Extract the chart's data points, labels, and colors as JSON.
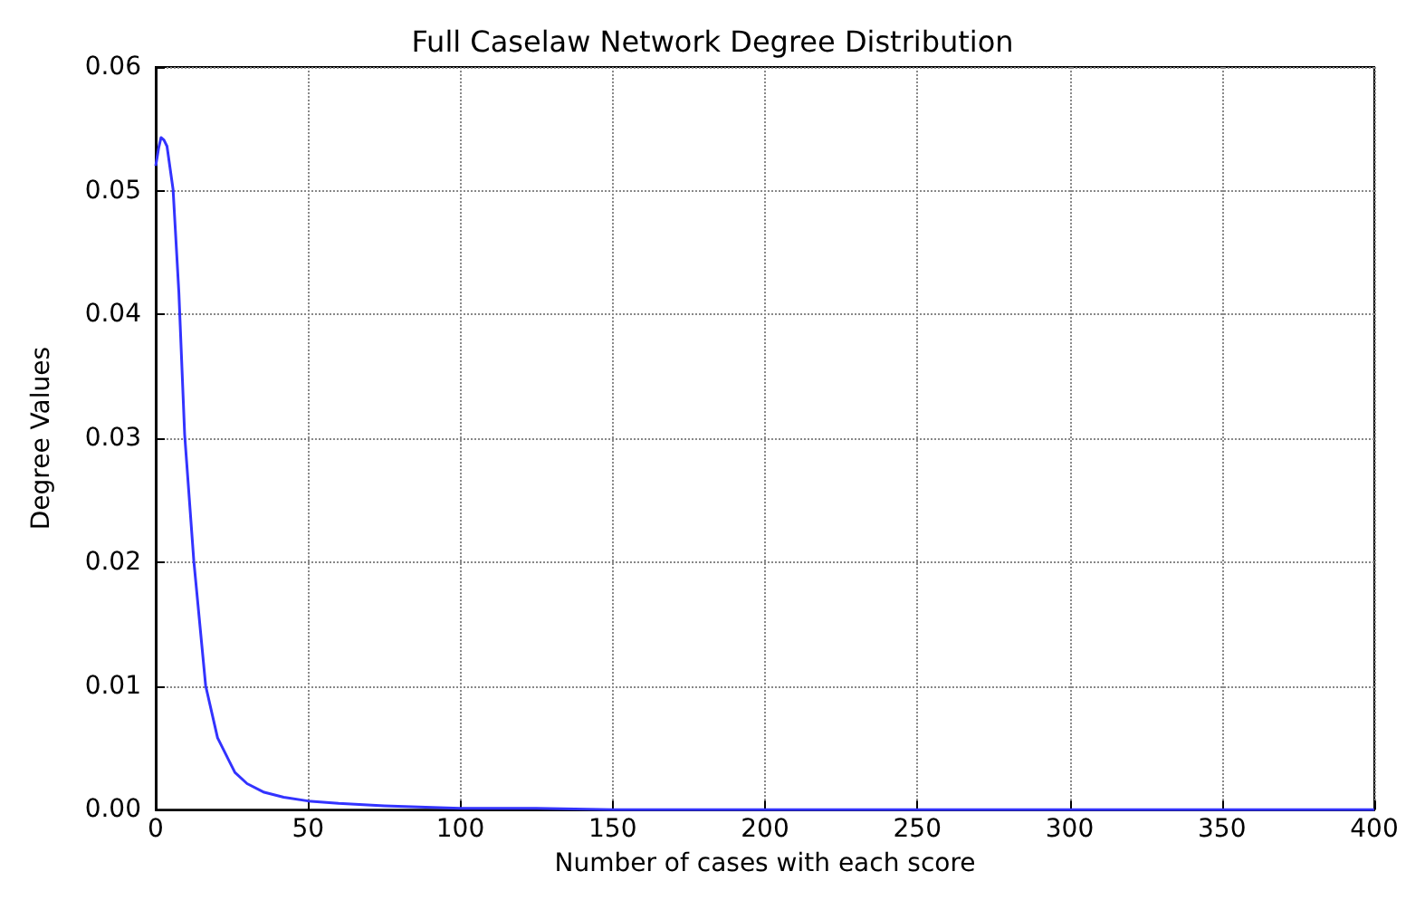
{
  "chart_data": {
    "type": "line",
    "title": "Full Caselaw Network Degree Distribution",
    "xlabel": "Number of cases with each score",
    "ylabel": "Degree Values",
    "series": [
      {
        "color": "#3333ff",
        "x": [
          0,
          1,
          1.75,
          2.7,
          3.7,
          5.7,
          7.6,
          9.5,
          12.5,
          16.4,
          20.3,
          26,
          30,
          35.6,
          42,
          50,
          60,
          75,
          100,
          125,
          150,
          200,
          250,
          300,
          350,
          400
        ],
        "values": [
          0.052,
          0.0535,
          0.0543,
          0.0541,
          0.0536,
          0.0501,
          0.0418,
          0.0303,
          0.0201,
          0.01,
          0.0058,
          0.003,
          0.0021,
          0.0014,
          0.001,
          0.0007,
          0.0005,
          0.0003,
          0.0001,
          0.0001,
          0,
          0,
          0,
          0,
          0,
          0
        ]
      }
    ],
    "xlim": [
      0,
      400
    ],
    "xticks": [
      0,
      50,
      100,
      150,
      200,
      250,
      300,
      350,
      400
    ],
    "ylim": [
      0,
      0.06
    ],
    "yticks": [
      {
        "value": 0,
        "label": "0.00"
      },
      0.01,
      0.02,
      0.03,
      0.04,
      0.05,
      0.06
    ],
    "grid": true,
    "line_style": "solid",
    "marker": "none"
  }
}
